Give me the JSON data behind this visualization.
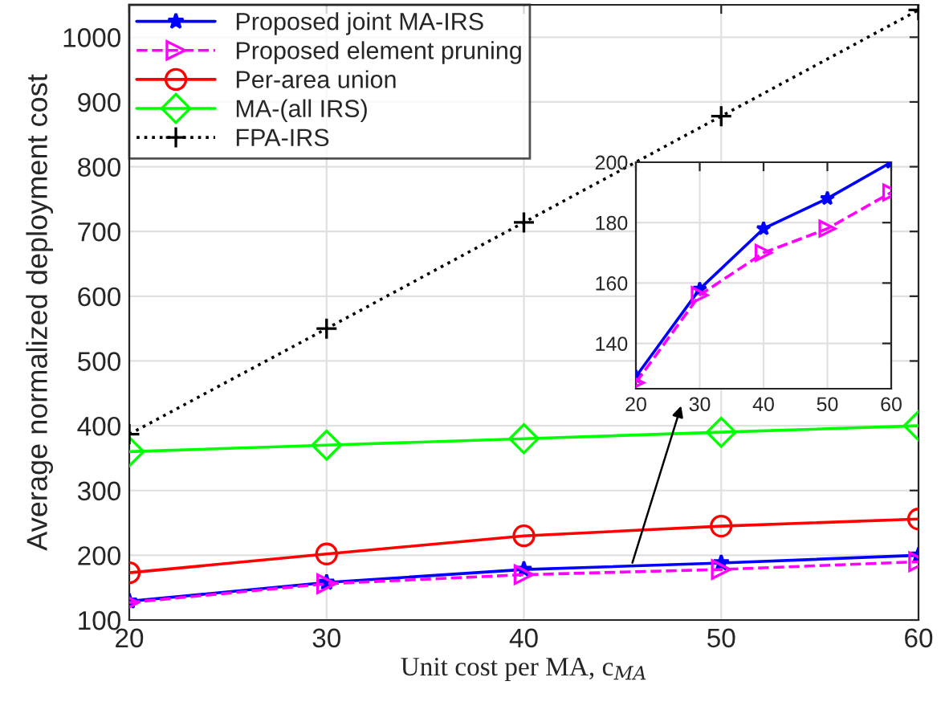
{
  "chart_data": [
    {
      "type": "line",
      "xlabel": "Unit cost per MA, c$_{MA}$",
      "ylabel": "Average normalized deployment cost",
      "x": [
        20,
        30,
        40,
        50,
        60
      ],
      "xlim": [
        20,
        60
      ],
      "xticks": [
        20,
        30,
        40,
        50,
        60
      ],
      "ylim": [
        100,
        1050
      ],
      "yticks": [
        100,
        200,
        300,
        400,
        500,
        600,
        700,
        800,
        900,
        1000
      ],
      "grid": true,
      "legend": "top left",
      "series": [
        {
          "name": "Proposed joint MA-IRS",
          "color": "#0000ff",
          "marker": "star",
          "line_style": "solid",
          "values": [
            129,
            158,
            178,
            188,
            200
          ]
        },
        {
          "name": "Proposed element pruning",
          "color": "#ff00ff",
          "marker": "triangle",
          "line_style": "dashed",
          "values": [
            127,
            156,
            170,
            178,
            190
          ]
        },
        {
          "name": "Per-area union",
          "color": "#ff0000",
          "marker": "circle",
          "line_style": "solid",
          "values": [
            173,
            202,
            230,
            245,
            256
          ]
        },
        {
          "name": "MA-(all IRS)",
          "color": "#00ff00",
          "marker": "diamond",
          "line_style": "solid",
          "values": [
            360,
            370,
            380,
            390,
            400
          ]
        },
        {
          "name": "FPA-IRS",
          "color": "#000000",
          "marker": "cross",
          "line_style": "dotted",
          "values": [
            387,
            550,
            714,
            878,
            1042
          ]
        }
      ]
    },
    {
      "type": "line",
      "x": [
        20,
        30,
        40,
        50,
        60
      ],
      "xlim": [
        20,
        60
      ],
      "xticks": [
        20,
        30,
        40,
        50,
        60
      ],
      "ylim": [
        125,
        200
      ],
      "yticks": [
        140,
        160,
        180,
        200
      ],
      "grid": true,
      "series": [
        {
          "color": "#0000ff",
          "marker": "star",
          "line_style": "solid",
          "values": [
            129,
            158,
            178,
            188,
            200
          ]
        },
        {
          "color": "#ff00ff",
          "marker": "triangle",
          "line_style": "dashed",
          "values": [
            127,
            156,
            170,
            178,
            190
          ]
        }
      ]
    }
  ]
}
